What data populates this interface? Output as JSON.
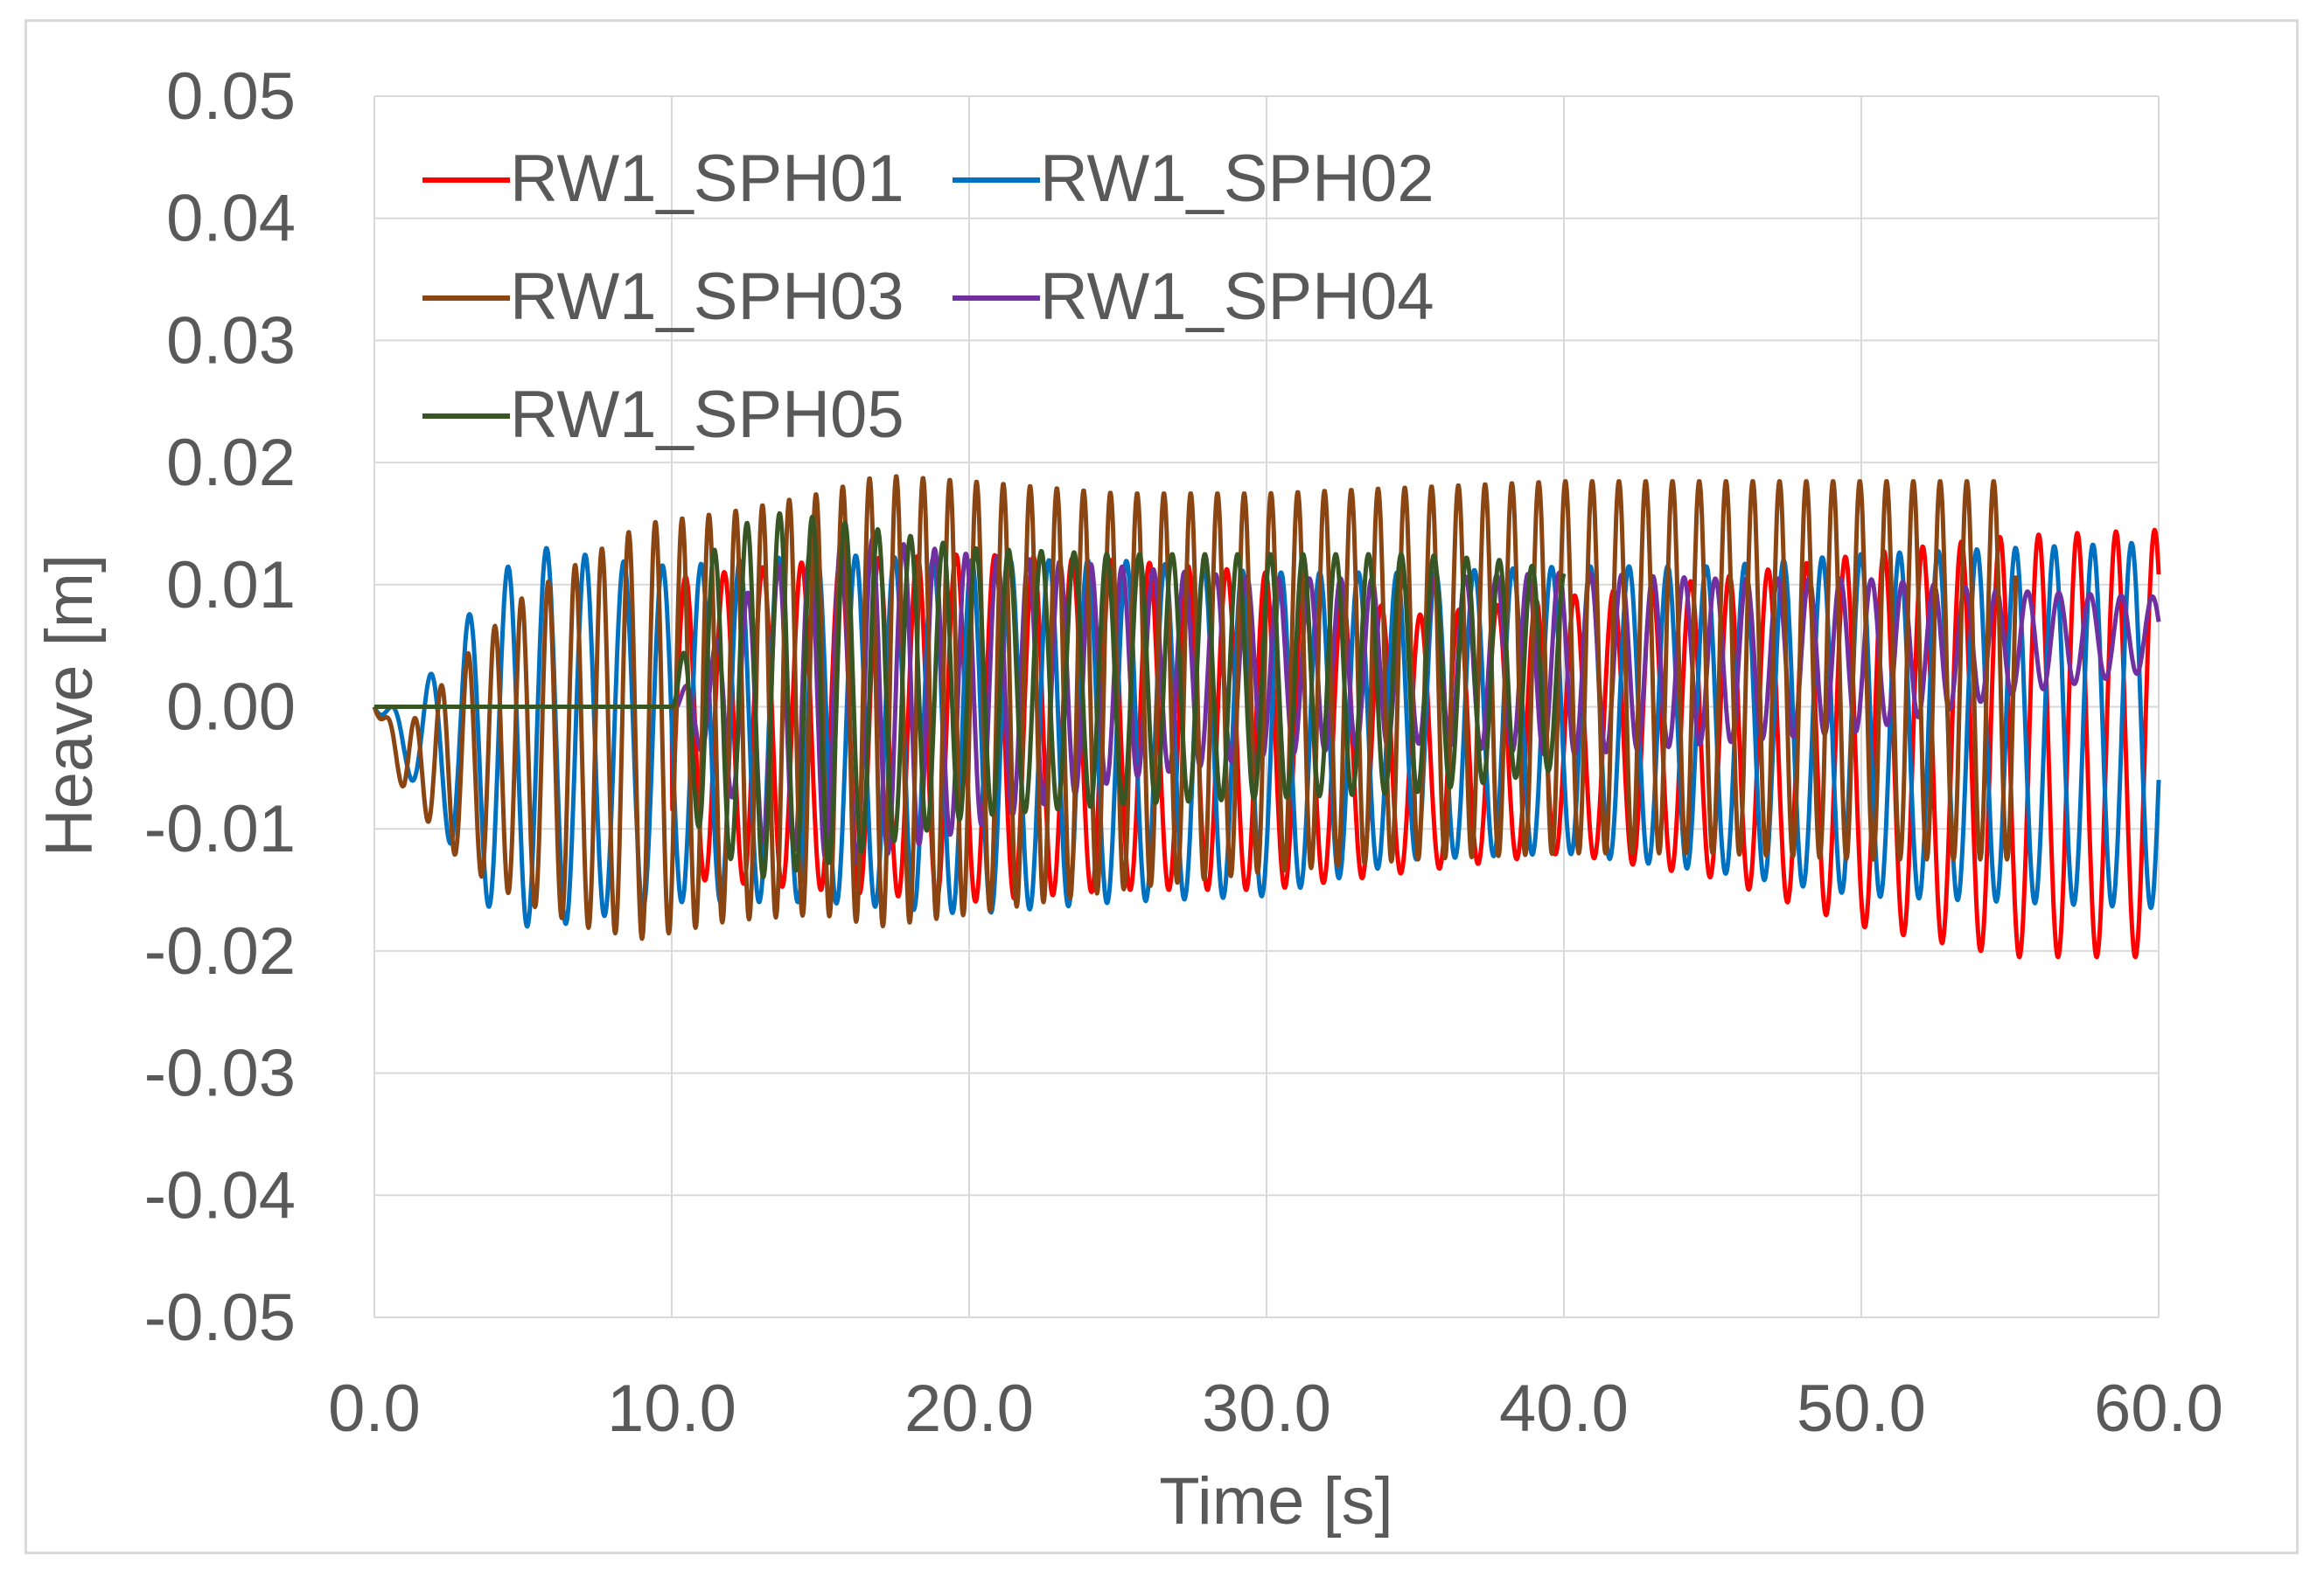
{
  "chart_data": {
    "type": "line",
    "title": "",
    "xlabel": "Time [s]",
    "ylabel": "Heave [m]",
    "xlim": [
      0,
      60
    ],
    "ylim": [
      -0.05,
      0.05
    ],
    "x_ticks": [
      0,
      10,
      20,
      30,
      40,
      50,
      60
    ],
    "x_tick_labels": [
      "0.0",
      "10.0",
      "20.0",
      "30.0",
      "40.0",
      "50.0",
      "60.0"
    ],
    "y_ticks": [
      0.05,
      0.04,
      0.03,
      0.02,
      0.01,
      0.0,
      -0.01,
      -0.02,
      -0.03,
      -0.04,
      -0.05
    ],
    "y_tick_labels": [
      "0.05",
      "0.04",
      "0.03",
      "0.02",
      "0.01",
      "0.00",
      "-0.01",
      "-0.02",
      "-0.03",
      "-0.04",
      "-0.05"
    ],
    "grid": true,
    "legend_position": "top-left",
    "series": [
      {
        "name": "RW1_SPH01",
        "color": "#ff0000",
        "period": 1.3,
        "phase": 0.9,
        "start": 10,
        "end": 60,
        "x": [
          10,
          15,
          20,
          25,
          30,
          35,
          40,
          45,
          50,
          55,
          60
        ],
        "max": [
          0.0105,
          0.012,
          0.0125,
          0.012,
          0.011,
          0.0075,
          0.009,
          0.0105,
          0.0125,
          0.014,
          0.0145
        ],
        "min": [
          -0.014,
          -0.015,
          -0.016,
          -0.015,
          -0.015,
          -0.0135,
          -0.012,
          -0.014,
          -0.018,
          -0.0205,
          -0.0205
        ]
      },
      {
        "name": "RW1_SPH02",
        "color": "#0070c0",
        "period": 1.3,
        "phase": 0.3,
        "start": 0,
        "end": 60,
        "x": [
          0,
          1,
          2,
          3,
          4,
          5,
          6,
          8,
          10,
          15,
          20,
          25,
          30,
          35,
          40,
          45,
          50,
          55,
          60
        ],
        "max": [
          0,
          0.0,
          0.003,
          0.007,
          0.01,
          0.013,
          0.013,
          0.012,
          0.0115,
          0.0125,
          0.012,
          0.012,
          0.011,
          0.011,
          0.0115,
          0.0115,
          0.0125,
          0.013,
          0.0135
        ],
        "min": [
          0,
          -0.005,
          -0.009,
          -0.013,
          -0.017,
          -0.018,
          -0.018,
          -0.017,
          -0.016,
          -0.016,
          -0.017,
          -0.016,
          -0.0155,
          -0.0125,
          -0.012,
          -0.0135,
          -0.0155,
          -0.016,
          -0.0165
        ]
      },
      {
        "name": "RW1_SPH03",
        "color": "#8b4513",
        "period": 0.9,
        "phase": 0.0,
        "start": 0,
        "end": 55.2,
        "x": [
          0,
          1,
          2,
          3,
          5,
          7,
          9,
          12,
          15,
          17,
          20,
          25,
          30,
          35,
          40,
          45,
          50,
          55.2
        ],
        "max": [
          0,
          -0.002,
          0.001,
          0.004,
          0.009,
          0.012,
          0.015,
          0.016,
          0.0175,
          0.019,
          0.0185,
          0.0175,
          0.0175,
          0.018,
          0.0185,
          0.0185,
          0.0185,
          0.0185
        ],
        "min": [
          0,
          -0.007,
          -0.01,
          -0.013,
          -0.016,
          -0.018,
          -0.019,
          -0.0175,
          -0.017,
          -0.018,
          -0.017,
          -0.015,
          -0.0135,
          -0.0125,
          -0.012,
          -0.012,
          -0.0125,
          -0.0125
        ]
      },
      {
        "name": "RW1_SPH04",
        "color": "#7030a0",
        "period": 1.05,
        "phase": 0.5,
        "start": 10,
        "end": 60,
        "x": [
          10,
          13,
          16,
          20,
          25,
          30,
          35,
          40,
          45,
          50,
          55,
          60
        ],
        "max": [
          0.0,
          0.011,
          0.014,
          0.0125,
          0.0115,
          0.0105,
          0.0105,
          0.011,
          0.0105,
          0.0105,
          0.0095,
          0.009
        ],
        "min": [
          0.0,
          -0.011,
          -0.013,
          -0.01,
          -0.006,
          -0.004,
          -0.003,
          -0.004,
          -0.003,
          -0.002,
          0.001,
          0.003
        ]
      },
      {
        "name": "RW1_SPH05",
        "color": "#375623",
        "period": 1.1,
        "phase": 0.7,
        "start": 0,
        "end": 40,
        "x": [
          0,
          10,
          11,
          13,
          15,
          20,
          25,
          30,
          35,
          38,
          40
        ],
        "max": [
          0,
          0.0,
          0.012,
          0.016,
          0.0155,
          0.013,
          0.0125,
          0.0125,
          0.0125,
          0.012,
          0.011
        ],
        "min": [
          0,
          0.0,
          -0.011,
          -0.014,
          -0.013,
          -0.009,
          -0.008,
          -0.0075,
          -0.007,
          -0.006,
          -0.005
        ]
      }
    ]
  }
}
